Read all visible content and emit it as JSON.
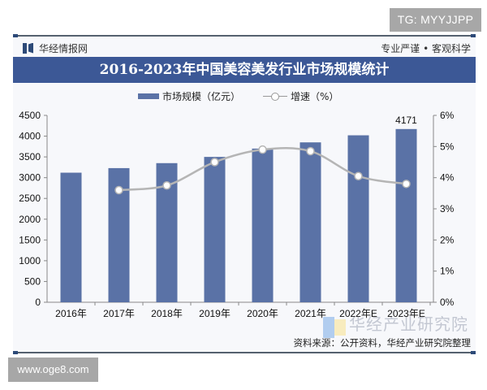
{
  "badge_top": "TG: MYYJJPP",
  "badge_bottom": "www.oge8.com",
  "header": {
    "brand": "华经情报网",
    "slogan": "专业严谨 • 客观科学"
  },
  "title": "2016-2023年中国美容美发行业市场规模统计",
  "legend": {
    "bar_label": "市场规模（亿元）",
    "line_label": "增速（%）"
  },
  "footer": {
    "source": "资料来源：公开资料，华经产业研究院整理",
    "watermark": "华经产业研究院"
  },
  "colors": {
    "bar": "#5a72a6",
    "line": "#b5b5b5",
    "title_bg": "#3c5896"
  },
  "chart_data": {
    "type": "bar",
    "title": "2016-2023年中国美容美发行业市场规模统计",
    "categories": [
      "2016年",
      "2017年",
      "2018年",
      "2019年",
      "2020年",
      "2021年",
      "2022年E",
      "2023年E"
    ],
    "series": [
      {
        "name": "市场规模（亿元）",
        "type": "bar",
        "axis": "left",
        "values": [
          3120,
          3230,
          3350,
          3500,
          3700,
          3850,
          4020,
          4171
        ]
      },
      {
        "name": "增速（%）",
        "type": "line",
        "axis": "right",
        "values": [
          null,
          3.6,
          3.75,
          4.5,
          4.9,
          4.85,
          4.05,
          3.8
        ]
      }
    ],
    "data_labels": [
      {
        "category": "2023年E",
        "series": "市场规模（亿元）",
        "text": "4171"
      }
    ],
    "ylabel": "",
    "ylim": [
      0,
      4500
    ],
    "yticks": [
      0,
      500,
      1000,
      1500,
      2000,
      2500,
      3000,
      3500,
      4000,
      4500
    ],
    "y2lim": [
      0,
      6
    ],
    "y2ticks": [
      "0%",
      "1%",
      "2%",
      "3%",
      "4%",
      "5%",
      "6%"
    ],
    "legend_position": "top",
    "grid": false
  }
}
